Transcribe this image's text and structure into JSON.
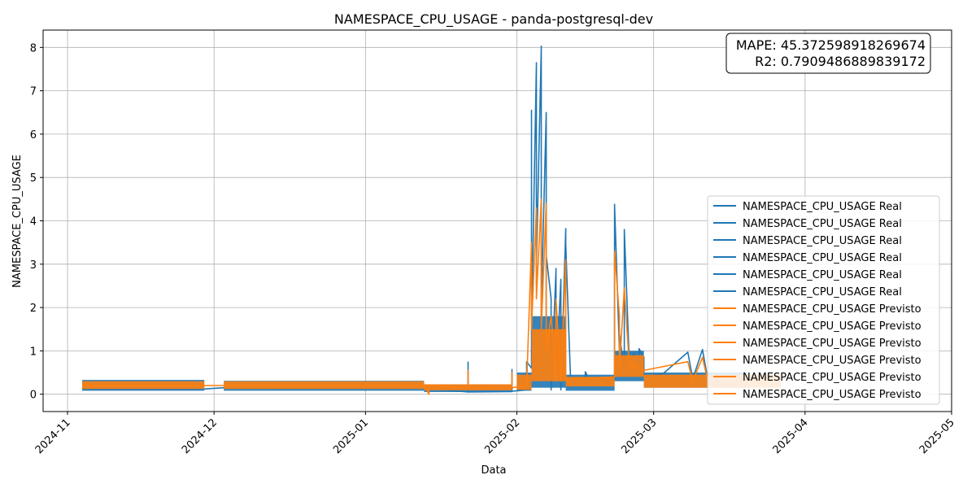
{
  "chart_data": {
    "type": "line",
    "title": "NAMESPACE_CPU_USAGE - panda-postgresql-dev",
    "xlabel": "Data",
    "ylabel": "NAMESPACE_CPU_USAGE",
    "x_range": [
      "2024-10-27",
      "2025-05-01"
    ],
    "ylim": [
      -0.4,
      8.4
    ],
    "grid": true,
    "x_ticks": [
      "2024-11-01",
      "2024-12-01",
      "2025-01-01",
      "2025-02-01",
      "2025-03-01",
      "2025-04-01",
      "2025-05-01"
    ],
    "x_tick_labels": [
      "2024-11",
      "2024-12",
      "2025-01",
      "2025-02",
      "2025-03",
      "2025-04",
      "2025-05"
    ],
    "y_ticks": [
      0,
      1,
      2,
      3,
      4,
      5,
      6,
      7,
      8
    ],
    "metrics": {
      "mape": "MAPE: 45.372598918269674",
      "r2": "R2: 0.7909486889839172"
    },
    "legend": {
      "placement": "lower-right",
      "entries": [
        {
          "label": "NAMESPACE_CPU_USAGE Real",
          "color": "#1f77b4"
        },
        {
          "label": "NAMESPACE_CPU_USAGE Real",
          "color": "#1f77b4"
        },
        {
          "label": "NAMESPACE_CPU_USAGE Real",
          "color": "#1f77b4"
        },
        {
          "label": "NAMESPACE_CPU_USAGE Real",
          "color": "#1f77b4"
        },
        {
          "label": "NAMESPACE_CPU_USAGE Real",
          "color": "#1f77b4"
        },
        {
          "label": "NAMESPACE_CPU_USAGE Real",
          "color": "#1f77b4"
        },
        {
          "label": "NAMESPACE_CPU_USAGE Previsto",
          "color": "#ff7f0e"
        },
        {
          "label": "NAMESPACE_CPU_USAGE Previsto",
          "color": "#ff7f0e"
        },
        {
          "label": "NAMESPACE_CPU_USAGE Previsto",
          "color": "#ff7f0e"
        },
        {
          "label": "NAMESPACE_CPU_USAGE Previsto",
          "color": "#ff7f0e"
        },
        {
          "label": "NAMESPACE_CPU_USAGE Previsto",
          "color": "#ff7f0e"
        },
        {
          "label": "NAMESPACE_CPU_USAGE Previsto",
          "color": "#ff7f0e"
        }
      ]
    },
    "series": [
      {
        "name": "NAMESPACE_CPU_USAGE Real",
        "color": "#1f77b4",
        "bands": [
          {
            "start": "2024-11-04",
            "end": "2024-11-29",
            "low": 0.08,
            "high": 0.33
          },
          {
            "start": "2024-12-03",
            "end": "2025-01-13",
            "low": 0.08,
            "high": 0.31
          },
          {
            "start": "2025-01-13",
            "end": "2025-01-31",
            "low": 0.05,
            "high": 0.22
          },
          {
            "start": "2025-02-01",
            "end": "2025-02-04",
            "low": 0.08,
            "high": 0.5
          },
          {
            "start": "2025-02-04",
            "end": "2025-02-11",
            "low": 0.15,
            "high": 1.8
          },
          {
            "start": "2025-02-11",
            "end": "2025-02-21",
            "low": 0.08,
            "high": 0.45
          },
          {
            "start": "2025-02-21",
            "end": "2025-02-27",
            "low": 0.3,
            "high": 1.0
          },
          {
            "start": "2025-02-27",
            "end": "2025-03-20",
            "low": 0.15,
            "high": 0.5
          }
        ],
        "points": [
          [
            "2024-11-04",
            0.12
          ],
          [
            "2024-11-29",
            0.12
          ],
          [
            "2024-12-03",
            0.15
          ],
          [
            "2025-01-13",
            0.14
          ],
          [
            "2025-01-22",
            0.05
          ],
          [
            "2025-01-22",
            0.74
          ],
          [
            "2025-01-22",
            0.05
          ],
          [
            "2025-01-31",
            0.06
          ],
          [
            "2025-01-31",
            0.57
          ],
          [
            "2025-01-31",
            0.07
          ],
          [
            "2025-02-03",
            0.1
          ],
          [
            "2025-02-03",
            0.75
          ],
          [
            "2025-02-04",
            0.6
          ],
          [
            "2025-02-04",
            6.55
          ],
          [
            "2025-02-04",
            1.5
          ],
          [
            "2025-02-05",
            7.6
          ],
          [
            "2025-02-05",
            2.5
          ],
          [
            "2025-02-05",
            7.65
          ],
          [
            "2025-02-05",
            3.0
          ],
          [
            "2025-02-06",
            7.98
          ],
          [
            "2025-02-06",
            1.2
          ],
          [
            "2025-02-06",
            8.03
          ],
          [
            "2025-02-06",
            2.0
          ],
          [
            "2025-02-07",
            6.5
          ],
          [
            "2025-02-07",
            5.4
          ],
          [
            "2025-02-07",
            1.0
          ],
          [
            "2025-02-07",
            3.2
          ],
          [
            "2025-02-08",
            2.2
          ],
          [
            "2025-02-08",
            0.1
          ],
          [
            "2025-02-09",
            2.85
          ],
          [
            "2025-02-09",
            2.9
          ],
          [
            "2025-02-09",
            0.3
          ],
          [
            "2025-02-10",
            2.65
          ],
          [
            "2025-02-10",
            0.1
          ],
          [
            "2025-02-11",
            3.82
          ],
          [
            "2025-02-11",
            3.65
          ],
          [
            "2025-02-11",
            3.45
          ],
          [
            "2025-02-12",
            0.3
          ],
          [
            "2025-02-15",
            0.35
          ],
          [
            "2025-02-15",
            0.52
          ],
          [
            "2025-02-16",
            0.3
          ],
          [
            "2025-02-21",
            0.35
          ],
          [
            "2025-02-21",
            4.38
          ],
          [
            "2025-02-22",
            1.0
          ],
          [
            "2025-02-22",
            1.4
          ],
          [
            "2025-02-23",
            0.5
          ],
          [
            "2025-02-23",
            3.0
          ],
          [
            "2025-02-23",
            3.8
          ],
          [
            "2025-02-24",
            0.8
          ],
          [
            "2025-02-25",
            0.95
          ],
          [
            "2025-02-26",
            0.5
          ],
          [
            "2025-02-26",
            1.05
          ],
          [
            "2025-02-27",
            0.85
          ],
          [
            "2025-02-27",
            0.4
          ],
          [
            "2025-03-03",
            0.48
          ],
          [
            "2025-03-08",
            0.97
          ],
          [
            "2025-03-09",
            0.35
          ],
          [
            "2025-03-11",
            1.03
          ],
          [
            "2025-03-12",
            0.4
          ],
          [
            "2025-03-20",
            0.5
          ]
        ]
      },
      {
        "name": "NAMESPACE_CPU_USAGE Previsto",
        "color": "#ff7f0e",
        "bands": [
          {
            "start": "2024-11-04",
            "end": "2024-11-29",
            "low": 0.12,
            "high": 0.3
          },
          {
            "start": "2024-12-03",
            "end": "2025-01-13",
            "low": 0.12,
            "high": 0.3
          },
          {
            "start": "2025-01-13",
            "end": "2025-01-31",
            "low": 0.09,
            "high": 0.23
          },
          {
            "start": "2025-02-01",
            "end": "2025-02-04",
            "low": 0.1,
            "high": 0.45
          },
          {
            "start": "2025-02-04",
            "end": "2025-02-11",
            "low": 0.3,
            "high": 1.5
          },
          {
            "start": "2025-02-11",
            "end": "2025-02-21",
            "low": 0.18,
            "high": 0.4
          },
          {
            "start": "2025-02-21",
            "end": "2025-02-27",
            "low": 0.4,
            "high": 0.9
          },
          {
            "start": "2025-02-27",
            "end": "2025-03-27",
            "low": 0.15,
            "high": 0.45
          }
        ],
        "points": [
          [
            "2024-11-04",
            0.2
          ],
          [
            "2024-11-29",
            0.2
          ],
          [
            "2024-12-03",
            0.2
          ],
          [
            "2025-01-13",
            0.2
          ],
          [
            "2025-01-14",
            0.0
          ],
          [
            "2025-01-14",
            0.2
          ],
          [
            "2025-01-22",
            0.15
          ],
          [
            "2025-01-22",
            0.55
          ],
          [
            "2025-01-22",
            0.15
          ],
          [
            "2025-01-31",
            0.15
          ],
          [
            "2025-01-31",
            0.5
          ],
          [
            "2025-01-31",
            0.15
          ],
          [
            "2025-02-03",
            0.2
          ],
          [
            "2025-02-04",
            3.5
          ],
          [
            "2025-02-04",
            1.5
          ],
          [
            "2025-02-05",
            4.3
          ],
          [
            "2025-02-05",
            2.2
          ],
          [
            "2025-02-06",
            4.5
          ],
          [
            "2025-02-06",
            1.5
          ],
          [
            "2025-02-07",
            4.4
          ],
          [
            "2025-02-07",
            1.0
          ],
          [
            "2025-02-08",
            1.8
          ],
          [
            "2025-02-09",
            0.3
          ],
          [
            "2025-02-09",
            2.2
          ],
          [
            "2025-02-10",
            0.3
          ],
          [
            "2025-02-11",
            3.1
          ],
          [
            "2025-02-11",
            0.35
          ],
          [
            "2025-02-21",
            0.4
          ],
          [
            "2025-02-21",
            3.3
          ],
          [
            "2025-02-22",
            1.8
          ],
          [
            "2025-02-22",
            0.6
          ],
          [
            "2025-02-23",
            2.45
          ],
          [
            "2025-02-24",
            0.7
          ],
          [
            "2025-02-27",
            0.55
          ],
          [
            "2025-03-08",
            0.75
          ],
          [
            "2025-03-09",
            0.3
          ],
          [
            "2025-03-11",
            0.85
          ],
          [
            "2025-03-12",
            0.35
          ],
          [
            "2025-03-20",
            0.45
          ],
          [
            "2025-03-27",
            0.3
          ]
        ]
      }
    ]
  }
}
